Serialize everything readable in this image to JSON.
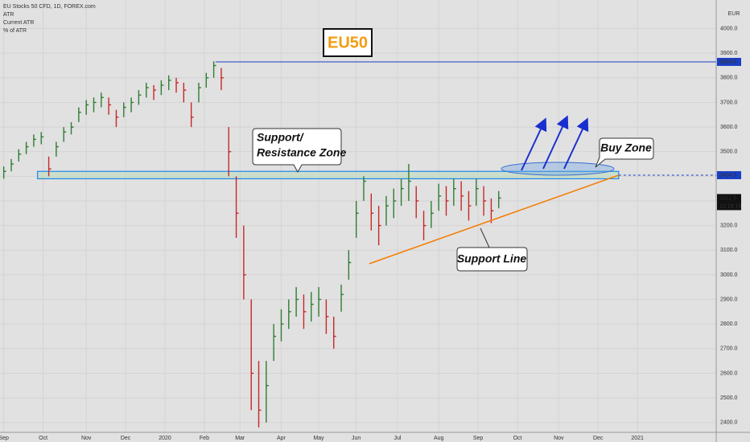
{
  "chart_data": {
    "type": "ohlc",
    "title": "EU Stocks 50 CFD, 1D, FOREX.com",
    "indicators": [
      "ATR",
      "Current ATR",
      "% of ATR"
    ],
    "currency": "EUR",
    "badge": "EU50",
    "callouts": {
      "zone": [
        "Support/",
        "Resistance Zone"
      ],
      "buy": "Buy Zone",
      "line": "Support Line"
    },
    "up_color": "#2e7d32",
    "down_color": "#c62828",
    "x": [
      0,
      4,
      8,
      12,
      16,
      20,
      24,
      28,
      32,
      36,
      40,
      44,
      48,
      52,
      56,
      60,
      64,
      68,
      72,
      76,
      80,
      84,
      88,
      92,
      96,
      100,
      104,
      108,
      112,
      116,
      120,
      124,
      128,
      132,
      136,
      140,
      144,
      148,
      152,
      156,
      160,
      164,
      168,
      172,
      176,
      180,
      184,
      188,
      192,
      196,
      200,
      204,
      208,
      212,
      216,
      220,
      224,
      228,
      232,
      236,
      240,
      244,
      248,
      252,
      256,
      260,
      264
    ],
    "high": [
      3440,
      3470,
      3510,
      3540,
      3570,
      3580,
      3480,
      3540,
      3600,
      3620,
      3680,
      3710,
      3720,
      3740,
      3720,
      3670,
      3700,
      3720,
      3750,
      3780,
      3770,
      3790,
      3810,
      3800,
      3780,
      3700,
      3780,
      3820,
      3867,
      3840,
      3600,
      3400,
      3200,
      2900,
      2650,
      2650,
      2800,
      2860,
      2900,
      2950,
      2920,
      2930,
      2950,
      2900,
      2830,
      2960,
      3100,
      3300,
      3400,
      3330,
      3280,
      3320,
      3350,
      3390,
      3450,
      3360,
      3260,
      3300,
      3370,
      3360,
      3390,
      3380,
      3340,
      3390,
      3360,
      3310,
      3340
    ],
    "low": [
      3390,
      3420,
      3460,
      3490,
      3520,
      3530,
      3400,
      3480,
      3540,
      3570,
      3620,
      3650,
      3660,
      3680,
      3650,
      3600,
      3640,
      3660,
      3690,
      3720,
      3710,
      3730,
      3750,
      3740,
      3700,
      3600,
      3700,
      3760,
      3800,
      3750,
      3400,
      3150,
      2900,
      2450,
      2380,
      2400,
      2650,
      2730,
      2780,
      2830,
      2780,
      2810,
      2830,
      2760,
      2700,
      2850,
      2980,
      3150,
      3300,
      3180,
      3120,
      3200,
      3230,
      3280,
      3300,
      3230,
      3140,
      3190,
      3260,
      3240,
      3280,
      3260,
      3220,
      3280,
      3240,
      3210,
      3270
    ],
    "close": [
      3420,
      3450,
      3490,
      3520,
      3550,
      3560,
      3430,
      3520,
      3580,
      3600,
      3660,
      3690,
      3700,
      3720,
      3690,
      3640,
      3680,
      3700,
      3730,
      3760,
      3750,
      3770,
      3790,
      3780,
      3750,
      3640,
      3760,
      3800,
      3850,
      3800,
      3500,
      3250,
      3000,
      2600,
      2450,
      2550,
      2750,
      2800,
      2850,
      2900,
      2850,
      2880,
      2900,
      2830,
      2750,
      2920,
      3050,
      3250,
      3380,
      3250,
      3200,
      3280,
      3300,
      3350,
      3380,
      3300,
      3200,
      3250,
      3320,
      3300,
      3350,
      3320,
      3280,
      3350,
      3300,
      3260,
      3311.5
    ],
    "xlim": [
      -2,
      380
    ],
    "xticks": [
      {
        "value": 0,
        "label": "Sep"
      },
      {
        "value": 21,
        "label": "Oct"
      },
      {
        "value": 44,
        "label": "Nov"
      },
      {
        "value": 65,
        "label": "Dec"
      },
      {
        "value": 86,
        "label": "2020"
      },
      {
        "value": 107,
        "label": "Feb"
      },
      {
        "value": 126,
        "label": "Mar"
      },
      {
        "value": 148,
        "label": "Apr"
      },
      {
        "value": 168,
        "label": "May"
      },
      {
        "value": 188,
        "label": "Jun"
      },
      {
        "value": 210,
        "label": "Jul"
      },
      {
        "value": 232,
        "label": "Aug"
      },
      {
        "value": 253,
        "label": "Sep"
      },
      {
        "value": 274,
        "label": "Oct"
      },
      {
        "value": 296,
        "label": "Nov"
      },
      {
        "value": 317,
        "label": "Dec"
      },
      {
        "value": 338,
        "label": "2021"
      }
    ],
    "ylim": [
      2360,
      4116
    ],
    "yticks": [
      {
        "value": 2400,
        "label": "2400.0"
      },
      {
        "value": 2500,
        "label": "2500.0"
      },
      {
        "value": 2600,
        "label": "2600.0"
      },
      {
        "value": 2700,
        "label": "2700.0"
      },
      {
        "value": 2800,
        "label": "2800.0"
      },
      {
        "value": 2900,
        "label": "2900.0"
      },
      {
        "value": 3000,
        "label": "3000.0"
      },
      {
        "value": 3100,
        "label": "3100.0"
      },
      {
        "value": 3200,
        "label": "3200.0"
      },
      {
        "value": 3300,
        "label": "3300.0"
      },
      {
        "value": 3400,
        "label": "3400.0"
      },
      {
        "value": 3500,
        "label": "3500.0"
      },
      {
        "value": 3600,
        "label": "3600.0"
      },
      {
        "value": 3700,
        "label": "3700.0"
      },
      {
        "value": 3800,
        "label": "3800.0"
      },
      {
        "value": 3900,
        "label": "3900.0"
      },
      {
        "value": 4000,
        "label": "4000.0"
      }
    ],
    "grid": true,
    "resistance": {
      "value": 3864.6,
      "from": 113,
      "color": "#1a3fc4"
    },
    "support": {
      "value": 3404.5,
      "color": "#1a3fc4"
    },
    "zone": {
      "from": 18,
      "to": 328,
      "low": 3390,
      "high": 3420,
      "color": "#1e88e5"
    },
    "support_line": {
      "x": [
        195,
        328
      ],
      "y": [
        3045,
        3404.5
      ],
      "color": "#f57c00"
    },
    "last": {
      "value": 3311.5,
      "countdown": "13:18:18"
    }
  }
}
